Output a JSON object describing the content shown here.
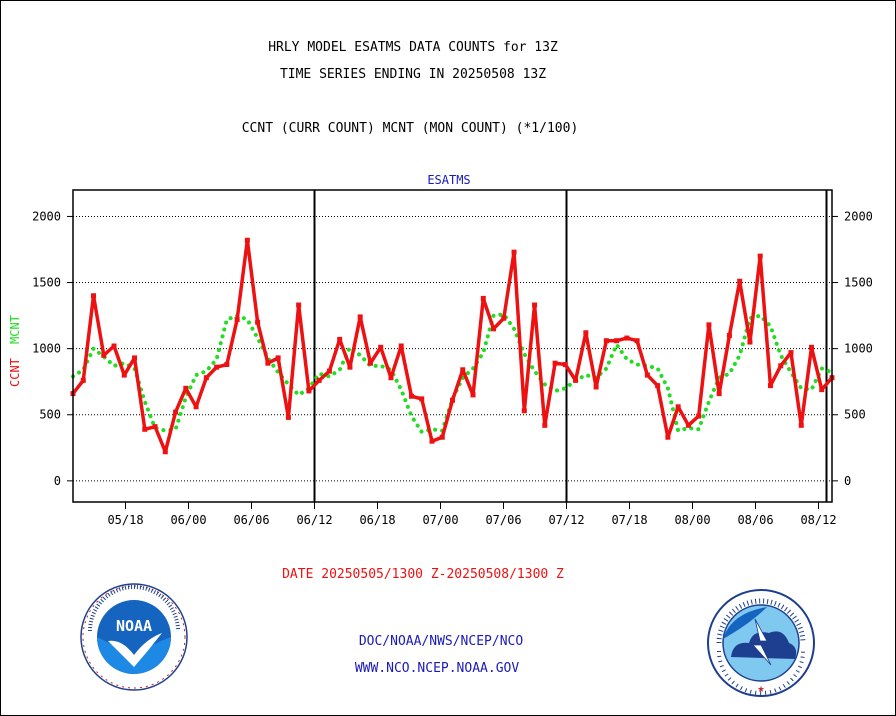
{
  "header": {
    "title_line1": "HRLY MODEL ESATMS DATA COUNTS for 13Z",
    "title_line2": "TIME SERIES ENDING IN 20250508 13Z",
    "subtitle": "CCNT (CURR COUNT) MCNT (MON COUNT) (*1/100)"
  },
  "chart_data": {
    "type": "line",
    "title": "ESATMS",
    "ylabel_ccnt": "CCNT",
    "ylabel_mcnt": "MCNT",
    "ylim": [
      -160,
      2200
    ],
    "yticks": [
      0,
      500,
      1000,
      1500,
      2000
    ],
    "xticks": [
      "05/18",
      "06/00",
      "06/06",
      "06/12",
      "06/18",
      "07/00",
      "07/06",
      "07/12",
      "07/18",
      "08/00",
      "08/06",
      "08/12"
    ],
    "xlabel": "DATE 20250505/1300 Z-20250508/1300 Z",
    "grid": true,
    "colors": {
      "ccnt": "#ee1111",
      "mcnt": "#22dd22",
      "axis": "#000000",
      "title": "#1a1ab8"
    },
    "series": [
      {
        "name": "CCNT",
        "values": [
          660,
          760,
          1400,
          950,
          1020,
          800,
          930,
          390,
          410,
          220,
          520,
          700,
          560,
          780,
          860,
          880,
          1220,
          1820,
          1200,
          890,
          930,
          480,
          1330,
          680,
          760,
          830,
          1070,
          860,
          1240,
          890,
          1010,
          780,
          1020,
          640,
          620,
          300,
          330,
          610,
          840,
          650,
          1380,
          1150,
          1230,
          1730,
          530,
          1330,
          420,
          890,
          880,
          760,
          1120,
          710,
          1060,
          1060,
          1080,
          1060,
          800,
          720,
          330,
          560,
          420,
          490,
          1180,
          660,
          1100,
          1510,
          1050,
          1700,
          720,
          870,
          970,
          420,
          1010,
          690,
          780
        ]
      },
      {
        "name": "MCNT",
        "values": [
          790,
          840,
          1000,
          940,
          870,
          890,
          850,
          600,
          400,
          380,
          390,
          630,
          800,
          830,
          920,
          1220,
          1250,
          1220,
          1080,
          930,
          820,
          730,
          650,
          700,
          810,
          790,
          840,
          1010,
          950,
          870,
          870,
          840,
          690,
          490,
          370,
          390,
          380,
          620,
          780,
          850,
          970,
          1250,
          1260,
          1150,
          960,
          830,
          730,
          680,
          700,
          760,
          800,
          780,
          850,
          1030,
          920,
          880,
          870,
          850,
          700,
          380,
          400,
          390,
          600,
          780,
          810,
          950,
          1230,
          1250,
          1170,
          950,
          820,
          700,
          690,
          850,
          820
        ]
      }
    ]
  },
  "footer": {
    "org_path": "DOC/NOAA/NWS/NCEP/NCO",
    "website": "WWW.NCO.NCEP.NOAA.GOV",
    "noaa_logo_text": "NOAA",
    "noaa_ring_text": "NATIONAL OCEANIC AND ATMOSPHERIC ADMINISTRATION · U.S. DEPARTMENT OF COMMERCE",
    "nws_ring_text": "NATIONAL WEATHER SERVICE"
  }
}
